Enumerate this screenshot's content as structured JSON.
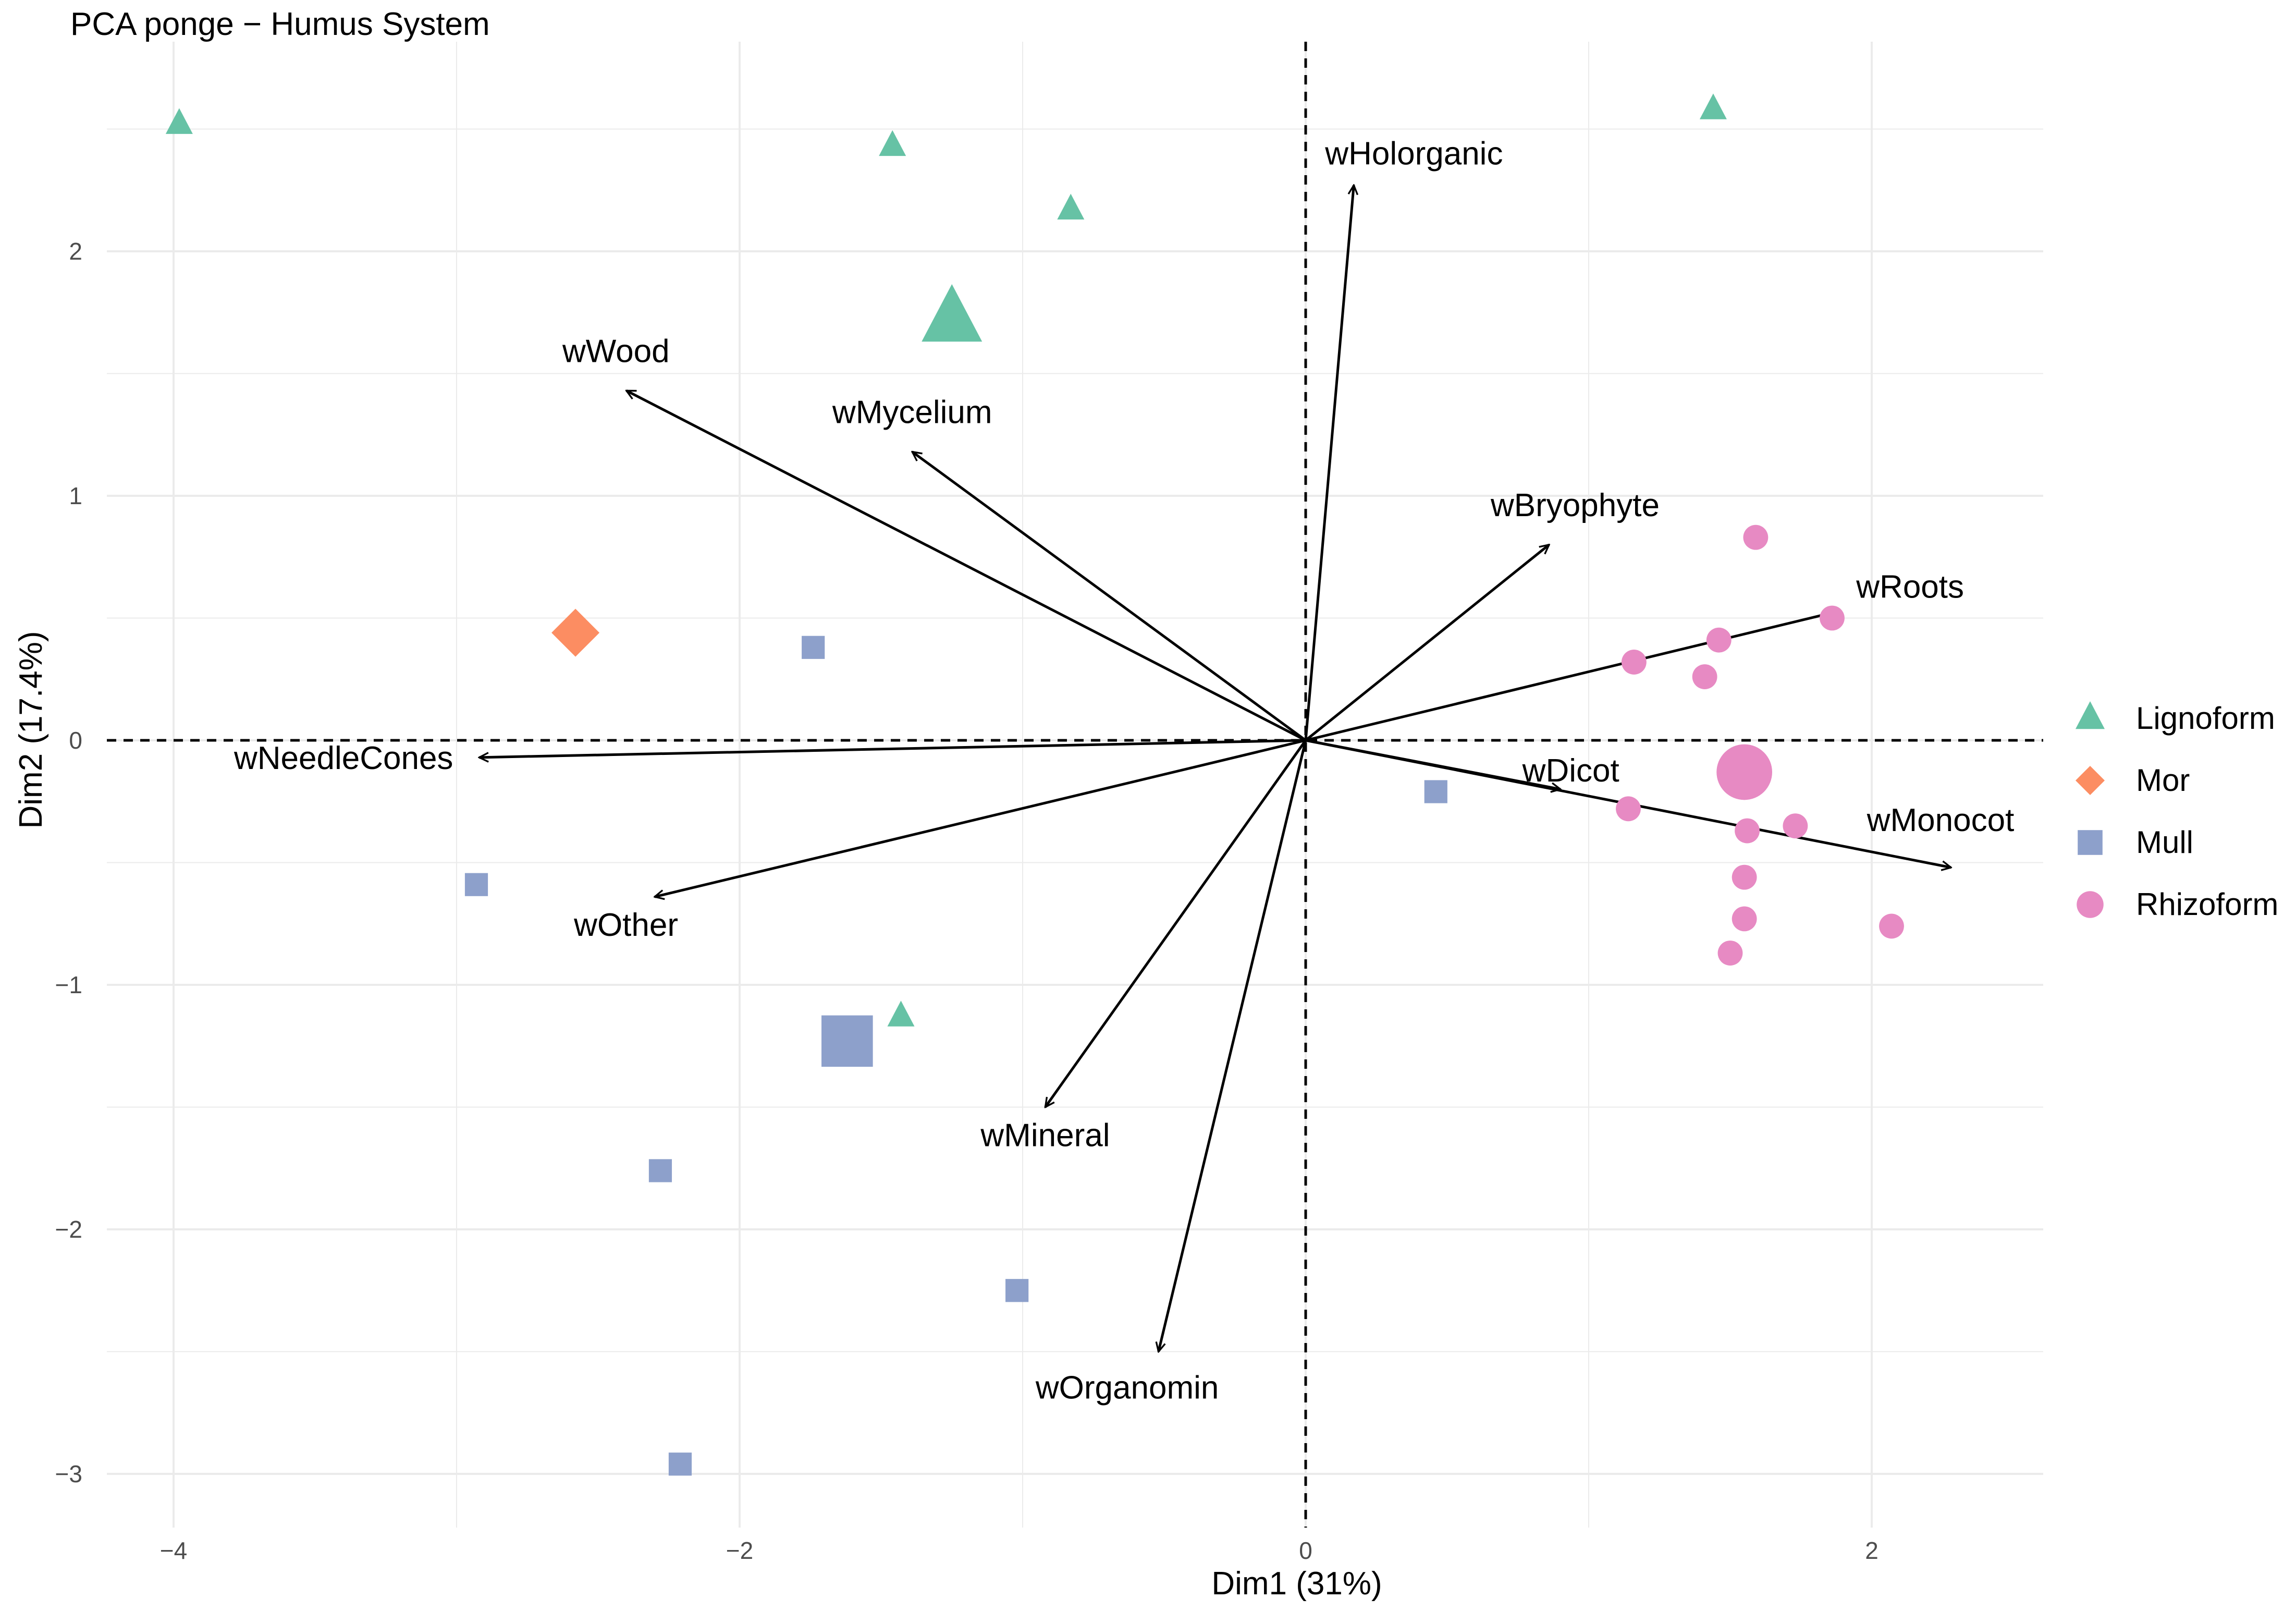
{
  "chart_data": {
    "type": "scatter",
    "title": "PCA ponge − Humus System",
    "xlabel": "Dim1 (31%)",
    "ylabel": "Dim2 (17.4%)",
    "xlim": [
      -4.2,
      2.6
    ],
    "ylim": [
      -3.2,
      2.8
    ],
    "x_ticks": [
      -4,
      -2,
      0,
      2
    ],
    "x_tick_labels": [
      "−4",
      "−2",
      "0",
      "2"
    ],
    "y_ticks": [
      -3,
      -2,
      -1,
      0,
      1,
      2
    ],
    "y_tick_labels": [
      "−3",
      "−2",
      "−1",
      "0",
      "1",
      "2"
    ],
    "grid": true,
    "reference_lines": {
      "x": 0,
      "y": 0,
      "style": "dashed"
    },
    "legend_position": "right",
    "groups": [
      {
        "name": "Lignoform",
        "shape": "triangle",
        "color": "#66C2A5",
        "points": [
          [
            -3.98,
            2.52
          ],
          [
            -1.46,
            2.43
          ],
          [
            -0.83,
            2.17
          ],
          [
            1.44,
            2.58
          ],
          [
            -1.43,
            -1.13
          ]
        ],
        "centroid": [
          -1.25,
          1.72
        ]
      },
      {
        "name": "Mor",
        "shape": "diamond",
        "color": "#FC8D62",
        "points": [
          [
            -2.58,
            0.44
          ]
        ],
        "centroid": null
      },
      {
        "name": "Mull",
        "shape": "square",
        "color": "#8DA0CB",
        "points": [
          [
            -1.74,
            0.38
          ],
          [
            -2.93,
            -0.59
          ],
          [
            -2.28,
            -1.76
          ],
          [
            -1.02,
            -2.25
          ],
          [
            -2.21,
            -2.96
          ],
          [
            0.46,
            -0.21
          ]
        ],
        "centroid": [
          -1.62,
          -1.23
        ]
      },
      {
        "name": "Rhizoform",
        "shape": "circle",
        "color": "#E78AC3",
        "points": [
          [
            1.59,
            0.83
          ],
          [
            1.46,
            0.41
          ],
          [
            1.16,
            0.32
          ],
          [
            1.41,
            0.26
          ],
          [
            1.86,
            0.5
          ],
          [
            1.14,
            -0.28
          ],
          [
            1.56,
            -0.37
          ],
          [
            1.73,
            -0.35
          ],
          [
            1.55,
            -0.56
          ],
          [
            1.55,
            -0.73
          ],
          [
            1.5,
            -0.87
          ],
          [
            2.07,
            -0.76
          ]
        ],
        "centroid": [
          1.55,
          -0.13
        ]
      }
    ],
    "arrows": [
      {
        "label": "wHolorganic",
        "x": 0.17,
        "y": 2.27
      },
      {
        "label": "wWood",
        "x": -2.4,
        "y": 1.43
      },
      {
        "label": "wMycelium",
        "x": -1.39,
        "y": 1.18
      },
      {
        "label": "wBryophyte",
        "x": 0.86,
        "y": 0.8
      },
      {
        "label": "wRoots",
        "x": 1.89,
        "y": 0.53
      },
      {
        "label": "wNeedleCones",
        "x": -2.92,
        "y": -0.07
      },
      {
        "label": "wDicot",
        "x": 0.9,
        "y": -0.2
      },
      {
        "label": "wMonocot",
        "x": 2.28,
        "y": -0.52
      },
      {
        "label": "wOther",
        "x": -2.3,
        "y": -0.64
      },
      {
        "label": "wMineral",
        "x": -0.92,
        "y": -1.5
      },
      {
        "label": "wOrganomin",
        "x": -0.52,
        "y": -2.5
      }
    ]
  }
}
